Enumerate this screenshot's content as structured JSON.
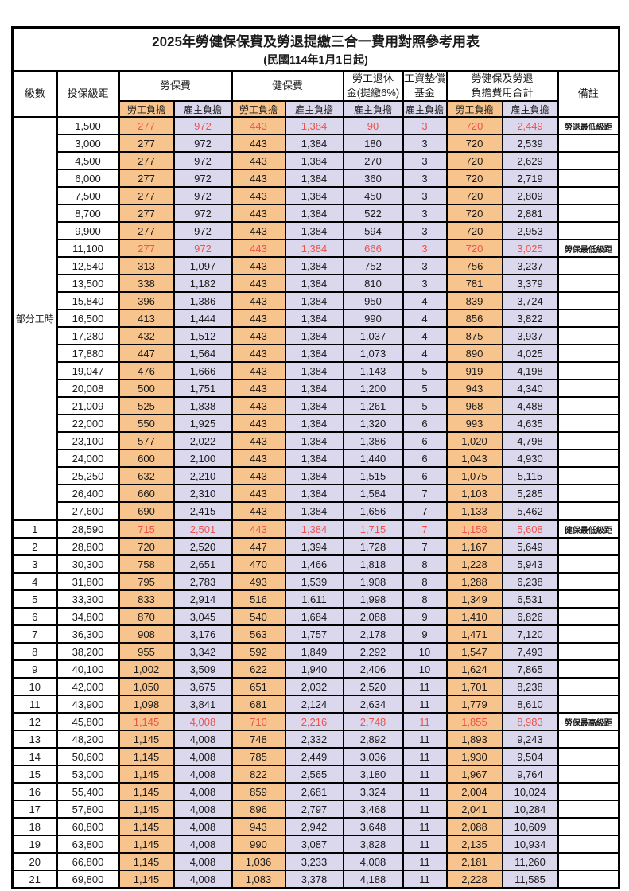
{
  "title": "2025年勞健保保費及勞退提繳三合一費用對照參考用表",
  "subtitle": "(民國114年1月1日起)",
  "accent_colors": {
    "employee_bg": "#F8C48E",
    "employer_bg": "#DBD8EE",
    "highlight_text": "#EC534E",
    "border": "#000000"
  },
  "header": {
    "level": "級數",
    "bracket": "投保級距",
    "labor_insurance": "勞保費",
    "health_insurance": "健保費",
    "pension_line1": "勞工退休",
    "pension_line2": "金(提繳6%)",
    "wage_fund_line1": "工資墊償",
    "wage_fund_line2": "基金",
    "total_line1": "勞健保及勞退",
    "total_line2": "負擔費用合計",
    "remark": "備註",
    "employee_share": "勞工負擔",
    "employer_share": "雇主負擔"
  },
  "part_time": {
    "label": "部分工時",
    "rowspan": 23
  },
  "rows": [
    {
      "level": null,
      "bracket": "1,500",
      "v": [
        "277",
        "972",
        "443",
        "1,384",
        "90",
        "3",
        "720",
        "2,449"
      ],
      "remark": "勞退最低級距",
      "red": true
    },
    {
      "level": null,
      "bracket": "3,000",
      "v": [
        "277",
        "972",
        "443",
        "1,384",
        "180",
        "3",
        "720",
        "2,539"
      ],
      "remark": "",
      "red": false
    },
    {
      "level": null,
      "bracket": "4,500",
      "v": [
        "277",
        "972",
        "443",
        "1,384",
        "270",
        "3",
        "720",
        "2,629"
      ],
      "remark": "",
      "red": false
    },
    {
      "level": null,
      "bracket": "6,000",
      "v": [
        "277",
        "972",
        "443",
        "1,384",
        "360",
        "3",
        "720",
        "2,719"
      ],
      "remark": "",
      "red": false
    },
    {
      "level": null,
      "bracket": "7,500",
      "v": [
        "277",
        "972",
        "443",
        "1,384",
        "450",
        "3",
        "720",
        "2,809"
      ],
      "remark": "",
      "red": false
    },
    {
      "level": null,
      "bracket": "8,700",
      "v": [
        "277",
        "972",
        "443",
        "1,384",
        "522",
        "3",
        "720",
        "2,881"
      ],
      "remark": "",
      "red": false
    },
    {
      "level": null,
      "bracket": "9,900",
      "v": [
        "277",
        "972",
        "443",
        "1,384",
        "594",
        "3",
        "720",
        "2,953"
      ],
      "remark": "",
      "red": false
    },
    {
      "level": null,
      "bracket": "11,100",
      "v": [
        "277",
        "972",
        "443",
        "1,384",
        "666",
        "3",
        "720",
        "3,025"
      ],
      "remark": "勞保最低級距",
      "red": true
    },
    {
      "level": null,
      "bracket": "12,540",
      "v": [
        "313",
        "1,097",
        "443",
        "1,384",
        "752",
        "3",
        "756",
        "3,237"
      ],
      "remark": "",
      "red": false
    },
    {
      "level": null,
      "bracket": "13,500",
      "v": [
        "338",
        "1,182",
        "443",
        "1,384",
        "810",
        "3",
        "781",
        "3,379"
      ],
      "remark": "",
      "red": false
    },
    {
      "level": null,
      "bracket": "15,840",
      "v": [
        "396",
        "1,386",
        "443",
        "1,384",
        "950",
        "4",
        "839",
        "3,724"
      ],
      "remark": "",
      "red": false
    },
    {
      "level": null,
      "bracket": "16,500",
      "v": [
        "413",
        "1,444",
        "443",
        "1,384",
        "990",
        "4",
        "856",
        "3,822"
      ],
      "remark": "",
      "red": false
    },
    {
      "level": null,
      "bracket": "17,280",
      "v": [
        "432",
        "1,512",
        "443",
        "1,384",
        "1,037",
        "4",
        "875",
        "3,937"
      ],
      "remark": "",
      "red": false
    },
    {
      "level": null,
      "bracket": "17,880",
      "v": [
        "447",
        "1,564",
        "443",
        "1,384",
        "1,073",
        "4",
        "890",
        "4,025"
      ],
      "remark": "",
      "red": false
    },
    {
      "level": null,
      "bracket": "19,047",
      "v": [
        "476",
        "1,666",
        "443",
        "1,384",
        "1,143",
        "5",
        "919",
        "4,198"
      ],
      "remark": "",
      "red": false
    },
    {
      "level": null,
      "bracket": "20,008",
      "v": [
        "500",
        "1,751",
        "443",
        "1,384",
        "1,200",
        "5",
        "943",
        "4,340"
      ],
      "remark": "",
      "red": false
    },
    {
      "level": null,
      "bracket": "21,009",
      "v": [
        "525",
        "1,838",
        "443",
        "1,384",
        "1,261",
        "5",
        "968",
        "4,488"
      ],
      "remark": "",
      "red": false
    },
    {
      "level": null,
      "bracket": "22,000",
      "v": [
        "550",
        "1,925",
        "443",
        "1,384",
        "1,320",
        "6",
        "993",
        "4,635"
      ],
      "remark": "",
      "red": false
    },
    {
      "level": null,
      "bracket": "23,100",
      "v": [
        "577",
        "2,022",
        "443",
        "1,384",
        "1,386",
        "6",
        "1,020",
        "4,798"
      ],
      "remark": "",
      "red": false
    },
    {
      "level": null,
      "bracket": "24,000",
      "v": [
        "600",
        "2,100",
        "443",
        "1,384",
        "1,440",
        "6",
        "1,043",
        "4,930"
      ],
      "remark": "",
      "red": false
    },
    {
      "level": null,
      "bracket": "25,250",
      "v": [
        "632",
        "2,210",
        "443",
        "1,384",
        "1,515",
        "6",
        "1,075",
        "5,115"
      ],
      "remark": "",
      "red": false
    },
    {
      "level": null,
      "bracket": "26,400",
      "v": [
        "660",
        "2,310",
        "443",
        "1,384",
        "1,584",
        "7",
        "1,103",
        "5,285"
      ],
      "remark": "",
      "red": false
    },
    {
      "level": null,
      "bracket": "27,600",
      "v": [
        "690",
        "2,415",
        "443",
        "1,384",
        "1,656",
        "7",
        "1,133",
        "5,462"
      ],
      "remark": "",
      "red": false
    },
    {
      "level": "1",
      "bracket": "28,590",
      "v": [
        "715",
        "2,501",
        "443",
        "1,384",
        "1,715",
        "7",
        "1,158",
        "5,608"
      ],
      "remark": "健保最低級距",
      "red": true,
      "section_start": true
    },
    {
      "level": "2",
      "bracket": "28,800",
      "v": [
        "720",
        "2,520",
        "447",
        "1,394",
        "1,728",
        "7",
        "1,167",
        "5,649"
      ],
      "remark": "",
      "red": false
    },
    {
      "level": "3",
      "bracket": "30,300",
      "v": [
        "758",
        "2,651",
        "470",
        "1,466",
        "1,818",
        "8",
        "1,228",
        "5,943"
      ],
      "remark": "",
      "red": false
    },
    {
      "level": "4",
      "bracket": "31,800",
      "v": [
        "795",
        "2,783",
        "493",
        "1,539",
        "1,908",
        "8",
        "1,288",
        "6,238"
      ],
      "remark": "",
      "red": false
    },
    {
      "level": "5",
      "bracket": "33,300",
      "v": [
        "833",
        "2,914",
        "516",
        "1,611",
        "1,998",
        "8",
        "1,349",
        "6,531"
      ],
      "remark": "",
      "red": false
    },
    {
      "level": "6",
      "bracket": "34,800",
      "v": [
        "870",
        "3,045",
        "540",
        "1,684",
        "2,088",
        "9",
        "1,410",
        "6,826"
      ],
      "remark": "",
      "red": false
    },
    {
      "level": "7",
      "bracket": "36,300",
      "v": [
        "908",
        "3,176",
        "563",
        "1,757",
        "2,178",
        "9",
        "1,471",
        "7,120"
      ],
      "remark": "",
      "red": false
    },
    {
      "level": "8",
      "bracket": "38,200",
      "v": [
        "955",
        "3,342",
        "592",
        "1,849",
        "2,292",
        "10",
        "1,547",
        "7,493"
      ],
      "remark": "",
      "red": false
    },
    {
      "level": "9",
      "bracket": "40,100",
      "v": [
        "1,002",
        "3,509",
        "622",
        "1,940",
        "2,406",
        "10",
        "1,624",
        "7,865"
      ],
      "remark": "",
      "red": false
    },
    {
      "level": "10",
      "bracket": "42,000",
      "v": [
        "1,050",
        "3,675",
        "651",
        "2,032",
        "2,520",
        "11",
        "1,701",
        "8,238"
      ],
      "remark": "",
      "red": false
    },
    {
      "level": "11",
      "bracket": "43,900",
      "v": [
        "1,098",
        "3,841",
        "681",
        "2,124",
        "2,634",
        "11",
        "1,779",
        "8,610"
      ],
      "remark": "",
      "red": false
    },
    {
      "level": "12",
      "bracket": "45,800",
      "v": [
        "1,145",
        "4,008",
        "710",
        "2,216",
        "2,748",
        "11",
        "1,855",
        "8,983"
      ],
      "remark": "勞保最高級距",
      "red": true
    },
    {
      "level": "13",
      "bracket": "48,200",
      "v": [
        "1,145",
        "4,008",
        "748",
        "2,332",
        "2,892",
        "11",
        "1,893",
        "9,243"
      ],
      "remark": "",
      "red": false
    },
    {
      "level": "14",
      "bracket": "50,600",
      "v": [
        "1,145",
        "4,008",
        "785",
        "2,449",
        "3,036",
        "11",
        "1,930",
        "9,504"
      ],
      "remark": "",
      "red": false
    },
    {
      "level": "15",
      "bracket": "53,000",
      "v": [
        "1,145",
        "4,008",
        "822",
        "2,565",
        "3,180",
        "11",
        "1,967",
        "9,764"
      ],
      "remark": "",
      "red": false
    },
    {
      "level": "16",
      "bracket": "55,400",
      "v": [
        "1,145",
        "4,008",
        "859",
        "2,681",
        "3,324",
        "11",
        "2,004",
        "10,024"
      ],
      "remark": "",
      "red": false
    },
    {
      "level": "17",
      "bracket": "57,800",
      "v": [
        "1,145",
        "4,008",
        "896",
        "2,797",
        "3,468",
        "11",
        "2,041",
        "10,284"
      ],
      "remark": "",
      "red": false
    },
    {
      "level": "18",
      "bracket": "60,800",
      "v": [
        "1,145",
        "4,008",
        "943",
        "2,942",
        "3,648",
        "11",
        "2,088",
        "10,609"
      ],
      "remark": "",
      "red": false
    },
    {
      "level": "19",
      "bracket": "63,800",
      "v": [
        "1,145",
        "4,008",
        "990",
        "3,087",
        "3,828",
        "11",
        "2,135",
        "10,934"
      ],
      "remark": "",
      "red": false
    },
    {
      "level": "20",
      "bracket": "66,800",
      "v": [
        "1,145",
        "4,008",
        "1,036",
        "3,233",
        "4,008",
        "11",
        "2,181",
        "11,260"
      ],
      "remark": "",
      "red": false
    },
    {
      "level": "21",
      "bracket": "69,800",
      "v": [
        "1,145",
        "4,008",
        "1,083",
        "3,378",
        "4,188",
        "11",
        "2,228",
        "11,585"
      ],
      "remark": "",
      "red": false
    }
  ]
}
